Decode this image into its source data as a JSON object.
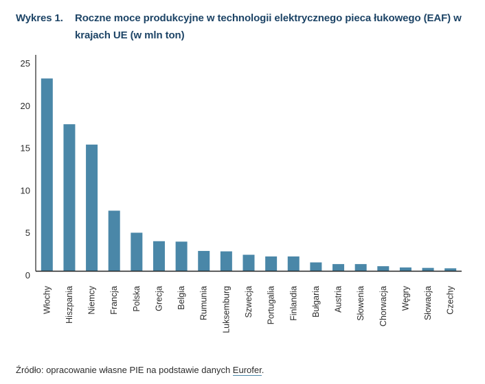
{
  "header": {
    "figure_number": "Wykres 1.",
    "title": "Roczne moce produkcyjne w technologii elektrycznego pieca łukowego (EAF) w krajach UE (w mln ton)"
  },
  "source": {
    "prefix": "Źródło: opracowanie własne PIE na podstawie danych ",
    "link_text": "Eurofer",
    "suffix": "."
  },
  "colors": {
    "bar": "#4a87a8",
    "title": "#1d4466",
    "axis": "#222222",
    "text": "#2b2b2b"
  },
  "chart_data": {
    "type": "bar",
    "title": "Roczne moce produkcyjne w technologii elektrycznego pieca łukowego (EAF) w krajach UE (w mln ton)",
    "xlabel": "",
    "ylabel": "",
    "ylim": [
      0,
      25
    ],
    "yticks": [
      0,
      5,
      10,
      15,
      20,
      25
    ],
    "grid": false,
    "legend": "none",
    "categories": [
      "Włochy",
      "Hiszpania",
      "Niemcy",
      "Francja",
      "Polska",
      "Grecja",
      "Belgia",
      "Rumunia",
      "Luksemburg",
      "Szwecja",
      "Portugalia",
      "Finlandia",
      "Bułgaria",
      "Austria",
      "Słowenia",
      "Chorwacja",
      "Węgry",
      "Słowacja",
      "Czechy"
    ],
    "values": [
      22.7,
      17.3,
      14.9,
      7.1,
      4.5,
      3.5,
      3.45,
      2.35,
      2.3,
      1.9,
      1.7,
      1.7,
      1.0,
      0.8,
      0.8,
      0.55,
      0.4,
      0.35,
      0.3
    ]
  }
}
